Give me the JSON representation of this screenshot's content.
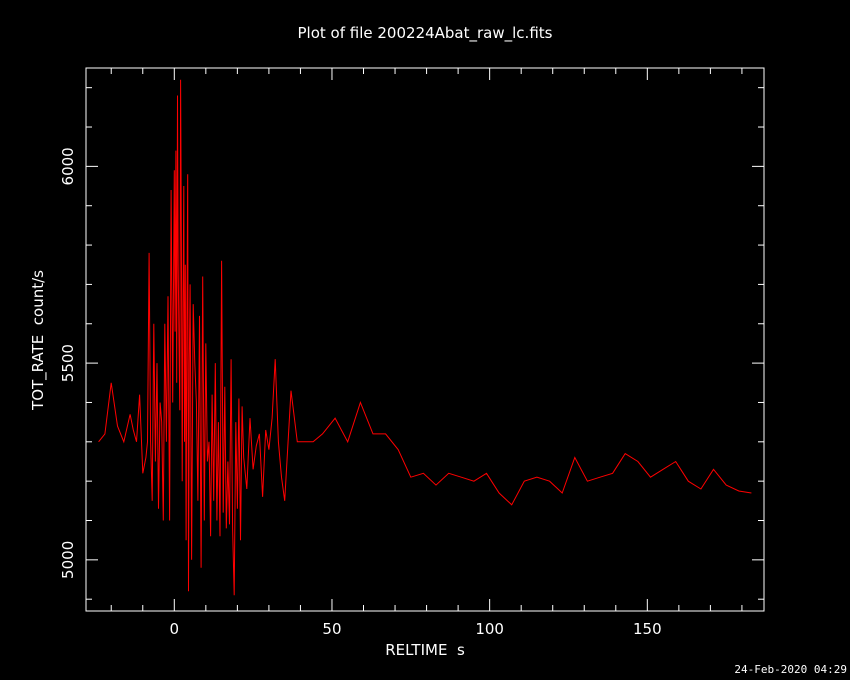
{
  "page": {
    "timestamp": "24-Feb-2020 04:29"
  },
  "chart_data": {
    "type": "line",
    "title": "Plot of file 200224Abat_raw_lc.fits",
    "xlabel": "RELTIME  s",
    "ylabel": "TOT_RATE  count/s",
    "xlim": [
      -28,
      187
    ],
    "ylim": [
      4870,
      6250
    ],
    "grid": false,
    "x_ticks": [
      0,
      50,
      100,
      150
    ],
    "x_tick_labels": [
      "0",
      "50",
      "100",
      "150"
    ],
    "y_ticks": [
      5000,
      5500,
      6000
    ],
    "y_tick_labels": [
      "5000",
      "5500",
      "6000"
    ],
    "x_minor_step": 10,
    "y_minor_step": 100,
    "series": [
      {
        "color": "#ff0000",
        "x": [
          -24,
          -22,
          -20,
          -18,
          -16,
          -14,
          -13,
          -12,
          -11,
          -10,
          -9,
          -8.5,
          -8,
          -7.5,
          -7,
          -6.5,
          -6,
          -5.5,
          -5,
          -4.5,
          -4,
          -3.5,
          -3,
          -2.5,
          -2,
          -1.5,
          -1,
          -0.5,
          0,
          0.25,
          0.5,
          0.75,
          1,
          1.25,
          1.5,
          1.75,
          2,
          2.25,
          2.5,
          2.75,
          3,
          3.25,
          3.5,
          3.75,
          4,
          4.25,
          4.5,
          4.75,
          5,
          5.5,
          6,
          6.5,
          7,
          7.5,
          8,
          8.5,
          9,
          9.5,
          10,
          10.5,
          11,
          11.5,
          12,
          12.5,
          13,
          13.5,
          14,
          14.5,
          15,
          15.5,
          16,
          16.5,
          17,
          17.5,
          18,
          18.5,
          19,
          19.5,
          20,
          20.5,
          21,
          21.5,
          22,
          23,
          24,
          25,
          26,
          27,
          28,
          29,
          30,
          31,
          32,
          33,
          34,
          35,
          37,
          39,
          41,
          44,
          47,
          51,
          55,
          59,
          63,
          67,
          71,
          75,
          79,
          83,
          87,
          91,
          95,
          99,
          103,
          107,
          111,
          115,
          119,
          123,
          127,
          131,
          135,
          139,
          143,
          147,
          151,
          155,
          159,
          163,
          167,
          171,
          175,
          179,
          183
        ],
        "y": [
          5300,
          5320,
          5450,
          5340,
          5300,
          5370,
          5330,
          5300,
          5420,
          5220,
          5260,
          5300,
          5780,
          5300,
          5150,
          5600,
          5250,
          5500,
          5130,
          5400,
          5350,
          5100,
          5600,
          5300,
          5670,
          5100,
          5940,
          5400,
          5990,
          5580,
          6040,
          5450,
          6180,
          5750,
          5550,
          5380,
          6220,
          5800,
          5200,
          5650,
          5950,
          5300,
          5750,
          5050,
          5600,
          5980,
          4920,
          5500,
          5700,
          5000,
          5650,
          5500,
          5400,
          5150,
          5620,
          4980,
          5720,
          5100,
          5550,
          5250,
          5300,
          5060,
          5420,
          5150,
          5500,
          5100,
          5350,
          5060,
          5760,
          5120,
          5440,
          5080,
          5250,
          5090,
          5510,
          5080,
          4910,
          5350,
          5130,
          5410,
          5050,
          5390,
          5260,
          5180,
          5360,
          5230,
          5290,
          5320,
          5160,
          5330,
          5280,
          5360,
          5510,
          5300,
          5210,
          5150,
          5430,
          5300,
          5300,
          5300,
          5320,
          5360,
          5300,
          5400,
          5320,
          5320,
          5280,
          5210,
          5220,
          5190,
          5220,
          5210,
          5200,
          5220,
          5170,
          5140,
          5200,
          5210,
          5200,
          5170,
          5260,
          5200,
          5210,
          5220,
          5270,
          5250,
          5210,
          5230,
          5250,
          5200,
          5180,
          5230,
          5190,
          5175,
          5170
        ]
      }
    ]
  }
}
